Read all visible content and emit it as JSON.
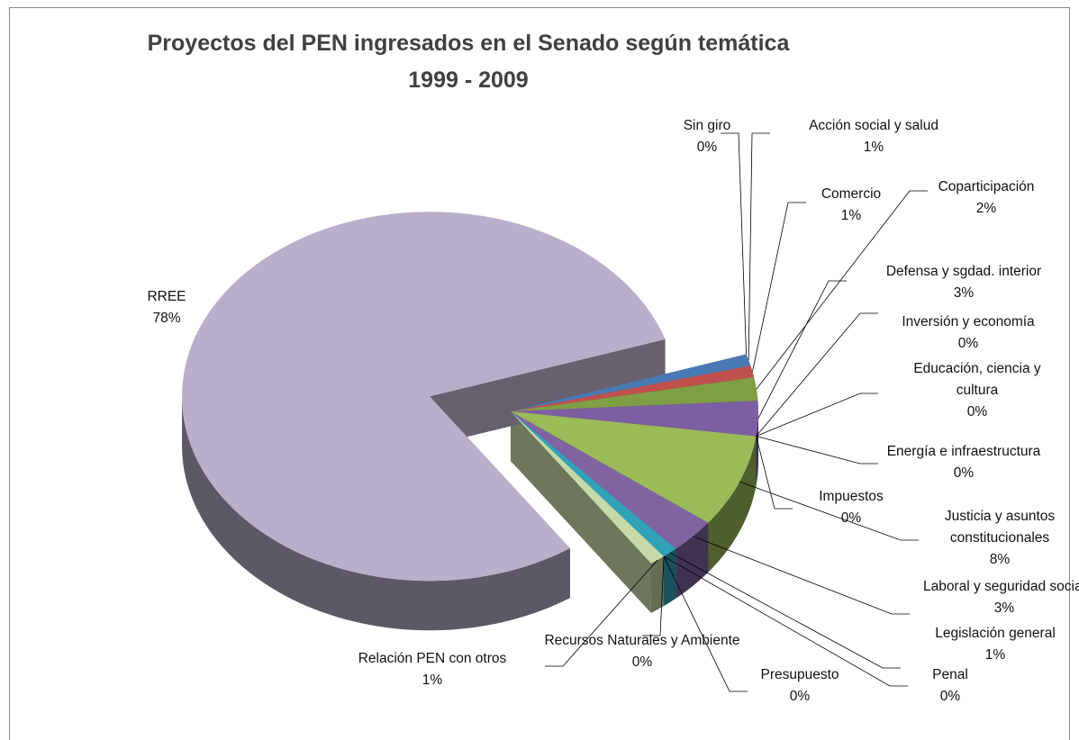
{
  "chart_data": {
    "type": "pie3d",
    "title": "Proyectos del PEN ingresados en el Senado según temática",
    "subtitle": "1999 - 2009",
    "categories": [
      "Sin giro",
      "Acción social y salud",
      "Comercio",
      "Coparticipación",
      "Defensa y sgdad. interior",
      "Inversión y economía",
      "Educación, ciencia y cultura",
      "Energía e infraestructura",
      "Impuestos",
      "Justicia y asuntos constitucionales",
      "Laboral y seguridad social",
      "Legislación general",
      "Penal",
      "Presupuesto",
      "Recursos Naturales y Ambiente",
      "Relación PEN con otros",
      "RREE"
    ],
    "values": [
      0,
      1,
      1,
      2,
      3,
      0,
      0,
      0,
      0,
      8,
      3,
      1,
      0,
      0,
      0,
      1,
      78
    ],
    "value_labels": [
      "0%",
      "1%",
      "1%",
      "2%",
      "3%",
      "0%",
      "0%",
      "0%",
      "0%",
      "8%",
      "3%",
      "1%",
      "0%",
      "0%",
      "0%",
      "1%",
      "78%"
    ],
    "colors": [
      "#1f497d",
      "#4a7ab5",
      "#c0504d",
      "#7f9f45",
      "#7c5ea3",
      "#4bacc6",
      "#f79646",
      "#2c4d75",
      "#772c2a",
      "#9bbb59",
      "#8064a2",
      "#31a2b8",
      "#b65708",
      "#4f81bd",
      "#c0504d",
      "#c6d9a8",
      "#b9afca"
    ]
  }
}
